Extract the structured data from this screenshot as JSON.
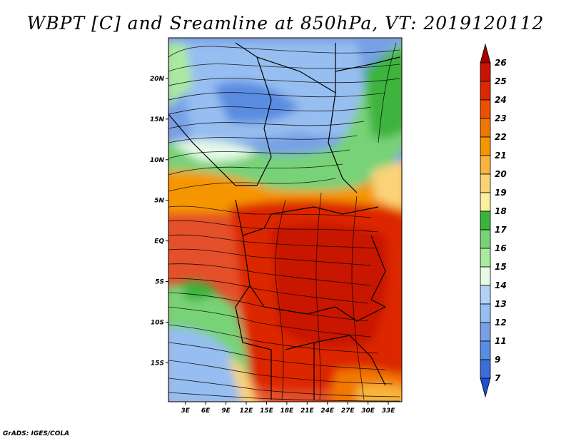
{
  "map": {
    "title": "WBPT [C] and Sreamline at 850hPa, VT: 2019120112",
    "footer": "GrADS: IGES/COLA",
    "lat_labels": [
      "20N",
      "15N",
      "10N",
      "5N",
      "EQ",
      "5S",
      "10S",
      "15S"
    ],
    "lat_values": [
      20,
      15,
      10,
      5,
      0,
      -5,
      -10,
      -15
    ],
    "lon_labels": [
      "3E",
      "6E",
      "9E",
      "12E",
      "15E",
      "18E",
      "21E",
      "24E",
      "27E",
      "30E",
      "33E"
    ],
    "lon_values": [
      3,
      6,
      9,
      12,
      15,
      18,
      21,
      24,
      27,
      30,
      33
    ],
    "extent": {
      "lon": [
        0.5,
        35
      ],
      "lat": [
        -19.8,
        25
      ]
    }
  },
  "colorbar": {
    "levels": [
      "26",
      "25",
      "24",
      "23",
      "22",
      "21",
      "20",
      "19",
      "18",
      "17",
      "16",
      "15",
      "14",
      "13",
      "12",
      "11",
      "9",
      "7"
    ],
    "colors": [
      "#a50000",
      "#c81400",
      "#dc2800",
      "#ee5000",
      "#f07800",
      "#f59600",
      "#f8b43c",
      "#fad278",
      "#fcf0a0",
      "#3cb43c",
      "#78d278",
      "#aaeaa0",
      "#e6fae6",
      "#b4d2f5",
      "#96bef0",
      "#78a0e6",
      "#5a8ce1",
      "#3c6ed7",
      "#1e50cd"
    ]
  }
}
